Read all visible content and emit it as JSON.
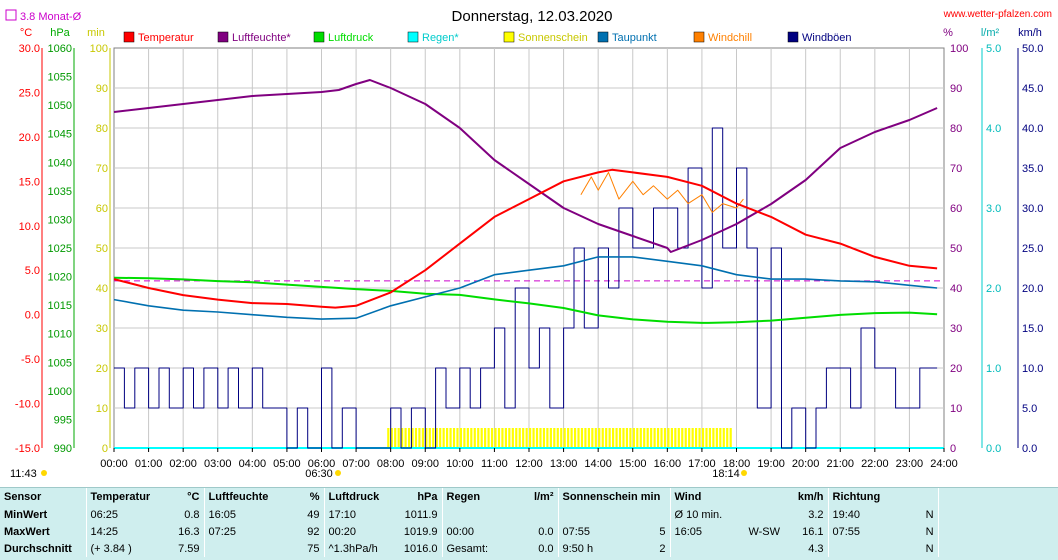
{
  "header": {
    "title": "Donnerstag, 12.03.2020",
    "site": "www.wetter-pfalzen.com",
    "month_avg": "3.8 Monat-Ø",
    "unit_celsius": "°C",
    "unit_hpa": "hPa",
    "unit_min": "min",
    "unit_percent": "%",
    "unit_lm2": "l/m²",
    "unit_kmh": "km/h",
    "sunrise": "06:30",
    "sunset": "18:14",
    "moon_time": "11:43"
  },
  "colors": {
    "temperatur": "#ff0000",
    "luftfeuchte": "#800080",
    "luftdruck": "#00dd00",
    "regen": "#00ffff",
    "sonnenschein": "#ffff00",
    "taupunkt": "#0070b0",
    "windchill": "#ff8000",
    "windboeen": "#000080",
    "month_avg": "#cc00cc"
  },
  "chart_data": {
    "type": "line",
    "title": "Donnerstag, 12.03.2020",
    "legend": [
      "Temperatur",
      "Luftfeuchte*",
      "Luftdruck",
      "Regen*",
      "Sonnenschein",
      "Taupunkt",
      "Windchill",
      "Windböen"
    ],
    "legend_position": "top",
    "x_ticks": [
      "00:00",
      "01:00",
      "02:00",
      "03:00",
      "04:00",
      "05:00",
      "06:00",
      "07:00",
      "08:00",
      "09:00",
      "10:00",
      "11:00",
      "12:00",
      "13:00",
      "14:00",
      "15:00",
      "16:00",
      "17:00",
      "18:00",
      "19:00",
      "20:00",
      "21:00",
      "22:00",
      "23:00",
      "24:00"
    ],
    "axes": {
      "temperature": {
        "range": [
          -15,
          30
        ],
        "ticks": [
          "30.0",
          "25.0",
          "20.0",
          "15.0",
          "10.0",
          "5.0",
          "0.0",
          "-5.0",
          "-10.0",
          "-15.0"
        ]
      },
      "pressure": {
        "range": [
          990,
          1060
        ],
        "ticks": [
          "1060",
          "1055",
          "1050",
          "1045",
          "1040",
          "1035",
          "1030",
          "1025",
          "1020",
          "1015",
          "1010",
          "1005",
          "1000",
          "995",
          "990"
        ]
      },
      "sunshine_min": {
        "range": [
          0,
          100
        ],
        "ticks": [
          "100",
          "90",
          "80",
          "70",
          "60",
          "50",
          "40",
          "30",
          "20",
          "10",
          "0"
        ]
      },
      "humidity": {
        "range": [
          0,
          100
        ],
        "ticks": [
          "100",
          "90",
          "80",
          "70",
          "60",
          "50",
          "40",
          "30",
          "20",
          "10",
          "0"
        ]
      },
      "rain": {
        "range": [
          0,
          5
        ],
        "ticks": [
          "5.0",
          "4.0",
          "3.0",
          "2.0",
          "1.0",
          "0.0"
        ]
      },
      "wind": {
        "range": [
          0,
          50
        ],
        "ticks": [
          "50.0",
          "45.0",
          "40.0",
          "35.0",
          "30.0",
          "25.0",
          "20.0",
          "15.0",
          "10.0",
          "5.0",
          "0.0"
        ]
      }
    },
    "grid": true,
    "month_avg_temp": 3.8,
    "series": [
      {
        "name": "Temperatur",
        "axis": "temperature",
        "x": [
          0,
          1,
          2,
          3,
          4,
          5,
          6,
          6.4,
          7,
          8,
          9,
          10,
          11,
          12,
          13,
          14,
          14.4,
          15,
          16,
          17,
          18,
          19,
          20,
          21,
          22,
          23,
          23.8
        ],
        "y": [
          4.0,
          3.0,
          2.2,
          1.7,
          1.3,
          1.2,
          0.9,
          0.8,
          1.0,
          2.5,
          5.0,
          8.0,
          11.0,
          13.0,
          15.0,
          16.0,
          16.3,
          16.0,
          15.5,
          14.5,
          12.5,
          11.0,
          9.0,
          8.0,
          6.5,
          5.5,
          5.2
        ]
      },
      {
        "name": "Luftfeuchte*",
        "axis": "humidity",
        "x": [
          0,
          1,
          2,
          3,
          4,
          5,
          6,
          6.5,
          7,
          7.4,
          8,
          9,
          10,
          11,
          12,
          13,
          14,
          15,
          16,
          16.1,
          17,
          18,
          19,
          20,
          21,
          22,
          23,
          23.8
        ],
        "y": [
          84,
          85,
          86,
          87,
          88,
          88.5,
          89,
          89.5,
          91,
          92,
          90,
          86,
          80,
          72,
          66,
          60,
          56,
          53,
          50,
          49,
          52,
          56,
          61,
          67,
          75,
          79,
          82,
          85
        ]
      },
      {
        "name": "Luftdruck",
        "axis": "pressure",
        "x": [
          0,
          1,
          2,
          3,
          4,
          5,
          6,
          7,
          8,
          9,
          10,
          11,
          12,
          13,
          14,
          15,
          16,
          17,
          17.2,
          18,
          19,
          20,
          21,
          22,
          23,
          23.8
        ],
        "y": [
          1019.8,
          1019.7,
          1019.5,
          1019.2,
          1019.0,
          1018.6,
          1018.2,
          1017.8,
          1017.5,
          1017.0,
          1016.8,
          1016.0,
          1015.3,
          1014.5,
          1013.2,
          1012.5,
          1012.1,
          1011.9,
          1011.9,
          1012.0,
          1012.3,
          1012.8,
          1013.3,
          1013.6,
          1013.7,
          1013.4
        ],
        "y_day_note": "1019.9 at 00:20"
      },
      {
        "name": "Regen*",
        "axis": "rain",
        "x": [
          0,
          24
        ],
        "y": [
          0,
          0
        ]
      },
      {
        "name": "Taupunkt",
        "axis": "temperature",
        "x": [
          0,
          1,
          2,
          3,
          4,
          5,
          6,
          7,
          8,
          9,
          10,
          11,
          12,
          13,
          14,
          15,
          16,
          17,
          18,
          19,
          20,
          21,
          22,
          23,
          23.8
        ],
        "y": [
          1.7,
          1.0,
          0.5,
          0.3,
          0.0,
          -0.3,
          -0.5,
          -0.4,
          1.0,
          2.0,
          3.0,
          4.5,
          5.0,
          5.5,
          6.5,
          6.5,
          6.0,
          5.5,
          4.5,
          4.0,
          4.0,
          3.8,
          3.7,
          3.3,
          3.0
        ]
      },
      {
        "name": "Windchill",
        "axis": "temperature",
        "x": [
          13.5,
          13.8,
          14.0,
          14.3,
          14.6,
          15.0,
          15.3,
          15.6,
          16.0,
          16.3,
          16.6,
          17.0,
          17.3,
          17.6,
          18.0,
          18.2
        ],
        "y": [
          13.5,
          15.5,
          14.0,
          16.0,
          13.0,
          15.0,
          13.5,
          14.5,
          13.0,
          14.0,
          12.5,
          13.5,
          11.5,
          12.5,
          12.0,
          13.0
        ]
      },
      {
        "name": "Windböen",
        "axis": "wind",
        "x": [
          0,
          0.3,
          0.6,
          1,
          1.3,
          1.6,
          2,
          2.3,
          2.6,
          3,
          3.3,
          3.6,
          4,
          4.3,
          4.6,
          5,
          5.3,
          5.6,
          6,
          6.3,
          6.6,
          7,
          7.3,
          7.6,
          8,
          8.3,
          8.6,
          9,
          9.3,
          9.6,
          10,
          10.3,
          10.6,
          11,
          11.3,
          11.6,
          12,
          12.3,
          12.6,
          13,
          13.3,
          13.6,
          14,
          14.3,
          14.6,
          15,
          15.3,
          15.6,
          16,
          16.3,
          16.6,
          17,
          17.3,
          17.6,
          18,
          18.3,
          18.6,
          19,
          19.3,
          19.6,
          20,
          20.3,
          20.6,
          21,
          21.3,
          21.6,
          22,
          22.3,
          22.6,
          23,
          23.3,
          23.8
        ],
        "y": [
          10,
          5,
          10,
          5,
          10,
          5,
          10,
          5,
          10,
          5,
          10,
          5,
          10,
          5,
          5,
          0,
          5,
          0,
          10,
          0,
          5,
          0,
          0,
          0,
          5,
          0,
          5,
          0,
          10,
          5,
          10,
          5,
          10,
          15,
          5,
          20,
          10,
          15,
          5,
          15,
          25,
          15,
          25,
          20,
          30,
          25,
          25,
          30,
          30,
          25,
          35,
          20,
          40,
          25,
          35,
          25,
          5,
          25,
          0,
          5,
          0,
          5,
          10,
          10,
          5,
          15,
          10,
          10,
          5,
          5,
          10,
          10
        ]
      }
    ],
    "sunshine_bars": [
      {
        "from": 7.9,
        "to": 8.0,
        "value": 5
      },
      {
        "from": 8.0,
        "to": 14.9,
        "value": 5
      },
      {
        "from": 15.0,
        "to": 17.9,
        "value": 5
      }
    ]
  },
  "stats": {
    "headers": [
      {
        "label": "Sensor",
        "unit": ""
      },
      {
        "label": "Temperatur",
        "unit": "°C"
      },
      {
        "label": "Luftfeuchte",
        "unit": "%"
      },
      {
        "label": "Luftdruck",
        "unit": "hPa"
      },
      {
        "label": "Regen",
        "unit": "l/m²"
      },
      {
        "label": "Sonnenschein min",
        "unit": ""
      },
      {
        "label": "Wind",
        "unit": "km/h"
      },
      {
        "label": "Richtung",
        "unit": ""
      }
    ],
    "rows": [
      {
        "label": "MinWert",
        "temp_time": "06:25",
        "temp_val": "0.8",
        "hum_time": "16:05",
        "hum_val": "49",
        "press_time": "17:10",
        "press_val": "1011.9",
        "rain_time": "",
        "rain_val": "",
        "sun_time": "",
        "sun_val": "",
        "wind_label": "Ø 10 min.",
        "wind_dir": "",
        "wind_val": "3.2",
        "dir_time": "19:40",
        "dir_val": "N"
      },
      {
        "label": "MaxWert",
        "temp_time": "14:25",
        "temp_val": "16.3",
        "hum_time": "07:25",
        "hum_val": "92",
        "press_time": "00:20",
        "press_val": "1019.9",
        "rain_time": "00:00",
        "rain_val": "0.0",
        "sun_time": "07:55",
        "sun_val": "5",
        "wind_label": "16:05",
        "wind_dir": "W-SW",
        "wind_val": "16.1",
        "dir_time": "07:55",
        "dir_val": "N"
      },
      {
        "label": "Durchschnitt",
        "temp_time": "(+ 3.84 )",
        "temp_val": "7.59",
        "hum_time": "",
        "hum_val": "75",
        "press_time": "^1.3hPa/h",
        "press_val": "1016.0",
        "rain_time": "Gesamt:",
        "rain_val": "0.0",
        "sun_time": "9:50 h",
        "sun_val": "2",
        "wind_label": "",
        "wind_dir": "",
        "wind_val": "4.3",
        "dir_time": "",
        "dir_val": "N"
      }
    ]
  }
}
